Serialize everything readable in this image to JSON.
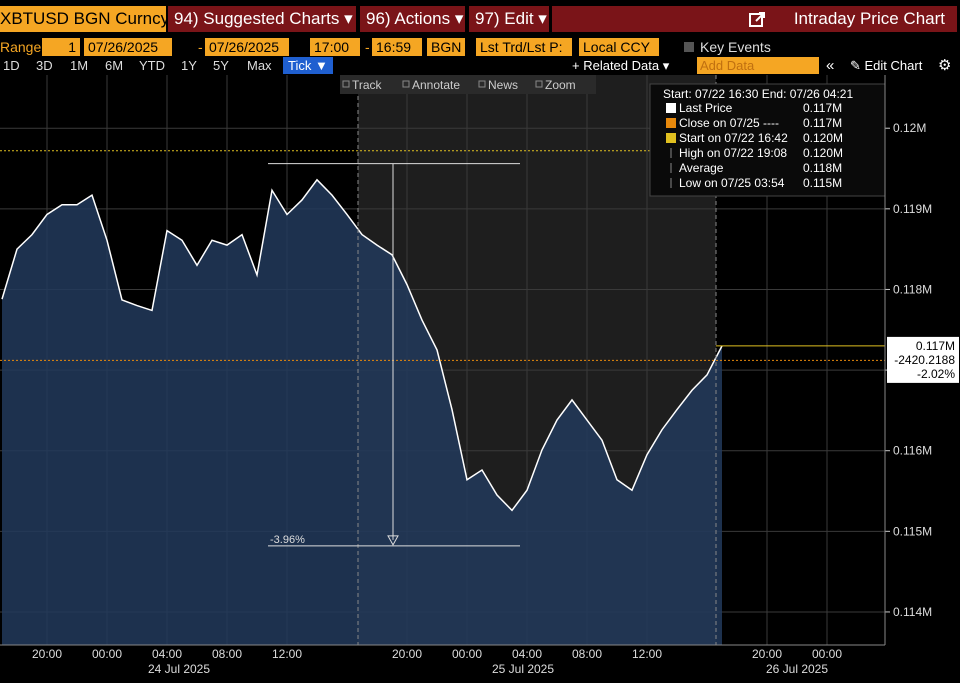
{
  "toolbar": {
    "ticker": "XBTUSD BGN Curncy",
    "menus": [
      "94) Suggested Charts ▾",
      "96) Actions ▾",
      "97) Edit ▾"
    ],
    "chart_name": "Intraday Price Chart"
  },
  "range_bar": {
    "label": "Range",
    "fields": [
      "1",
      "07/26/2025",
      "-",
      "07/26/2025",
      "17:00",
      "-",
      "16:59",
      "BGN",
      "Lst Trd/Lst P:",
      "Local CCY"
    ],
    "key_events": "Key Events"
  },
  "period_bar": {
    "periods": [
      "1D",
      "3D",
      "1M",
      "6M",
      "YTD",
      "1Y",
      "5Y",
      "Max"
    ],
    "selected": "Tick ▼",
    "related": "+ Related Data ▾",
    "add_data": "Add Data",
    "collapse": "«",
    "edit_chart": "✎ Edit Chart",
    "settings": "⚙"
  },
  "chart_tools": [
    "Track",
    "Annotate",
    "News",
    "Zoom"
  ],
  "chart_data": {
    "type": "area",
    "categories": [
      null,
      null,
      null,
      "20:00",
      null,
      null,
      null,
      "00:00",
      null,
      null,
      null,
      "04:00",
      null,
      null,
      null,
      "08:00",
      null,
      null,
      null,
      "12:00",
      null,
      null,
      null,
      null,
      null,
      null,
      null,
      "20:00",
      null,
      null,
      null,
      "00:00",
      null,
      null,
      null,
      "04:00",
      null,
      null,
      null,
      "08:00",
      null,
      null,
      null,
      "12:00",
      null,
      null,
      null,
      null,
      null,
      null,
      null,
      "20:00",
      null,
      null,
      null,
      "00:00",
      null,
      null,
      null,
      null
    ],
    "x_date_labels": [
      "24 Jul 2025",
      "25 Jul 2025",
      "26 Jul 2025"
    ],
    "series": [
      {
        "name": "Last Price",
        "color": "#ffffff",
        "fill": "#223a5c",
        "values": [
          117880,
          118500,
          118680,
          118930,
          119050,
          119050,
          119170,
          118610,
          117870,
          117800,
          117740,
          118730,
          118610,
          118300,
          118610,
          118550,
          118680,
          118180,
          119230,
          118930,
          119110,
          119360,
          119170,
          118930,
          118680,
          118550,
          118430,
          118060,
          117620,
          117250,
          116510,
          115640,
          115760,
          115450,
          115260,
          115510,
          116010,
          116380,
          116630,
          116380,
          116130,
          115640,
          115510,
          115950,
          116260,
          116510,
          116750,
          116940,
          117300,
          null,
          null,
          null,
          null,
          null,
          null,
          null,
          null,
          null,
          null,
          null
        ]
      }
    ],
    "ylim": [
      113590,
      120660
    ],
    "yticks": [
      {
        "value": 114000,
        "label": "0.114M"
      },
      {
        "value": 115000,
        "label": "0.115M"
      },
      {
        "value": 116000,
        "label": "0.116M"
      },
      {
        "value": 117000,
        "label": "0.117M"
      },
      {
        "value": 118000,
        "label": "0.118M"
      },
      {
        "value": 119000,
        "label": "0.119M"
      },
      {
        "value": 120000,
        "label": "0.12M"
      }
    ],
    "grid": true,
    "last": {
      "value": 117300,
      "label": "0.117M",
      "change": "-2420.2188",
      "change_pct": "-2.02%"
    },
    "reference_lines": [
      {
        "name": "Close on 07/25 ----",
        "value": 117120,
        "label": "0.117M",
        "color": "#e8890c"
      },
      {
        "name": "Start on 07/22 16:42",
        "value": 119720,
        "label": "0.120M",
        "color": "#e0c020"
      }
    ],
    "legend": {
      "header": "Start: 07/22 16:30 End: 07/26 04:21",
      "stats": [
        {
          "name": "High on 07/22 19:08",
          "value": 119560,
          "label": "0.120M"
        },
        {
          "name": "Average",
          "label": "0.118M"
        },
        {
          "name": "Low on 07/25 03:54",
          "value": 114820,
          "label": "0.115M"
        }
      ]
    },
    "measure": {
      "label": "-3.96%"
    }
  }
}
